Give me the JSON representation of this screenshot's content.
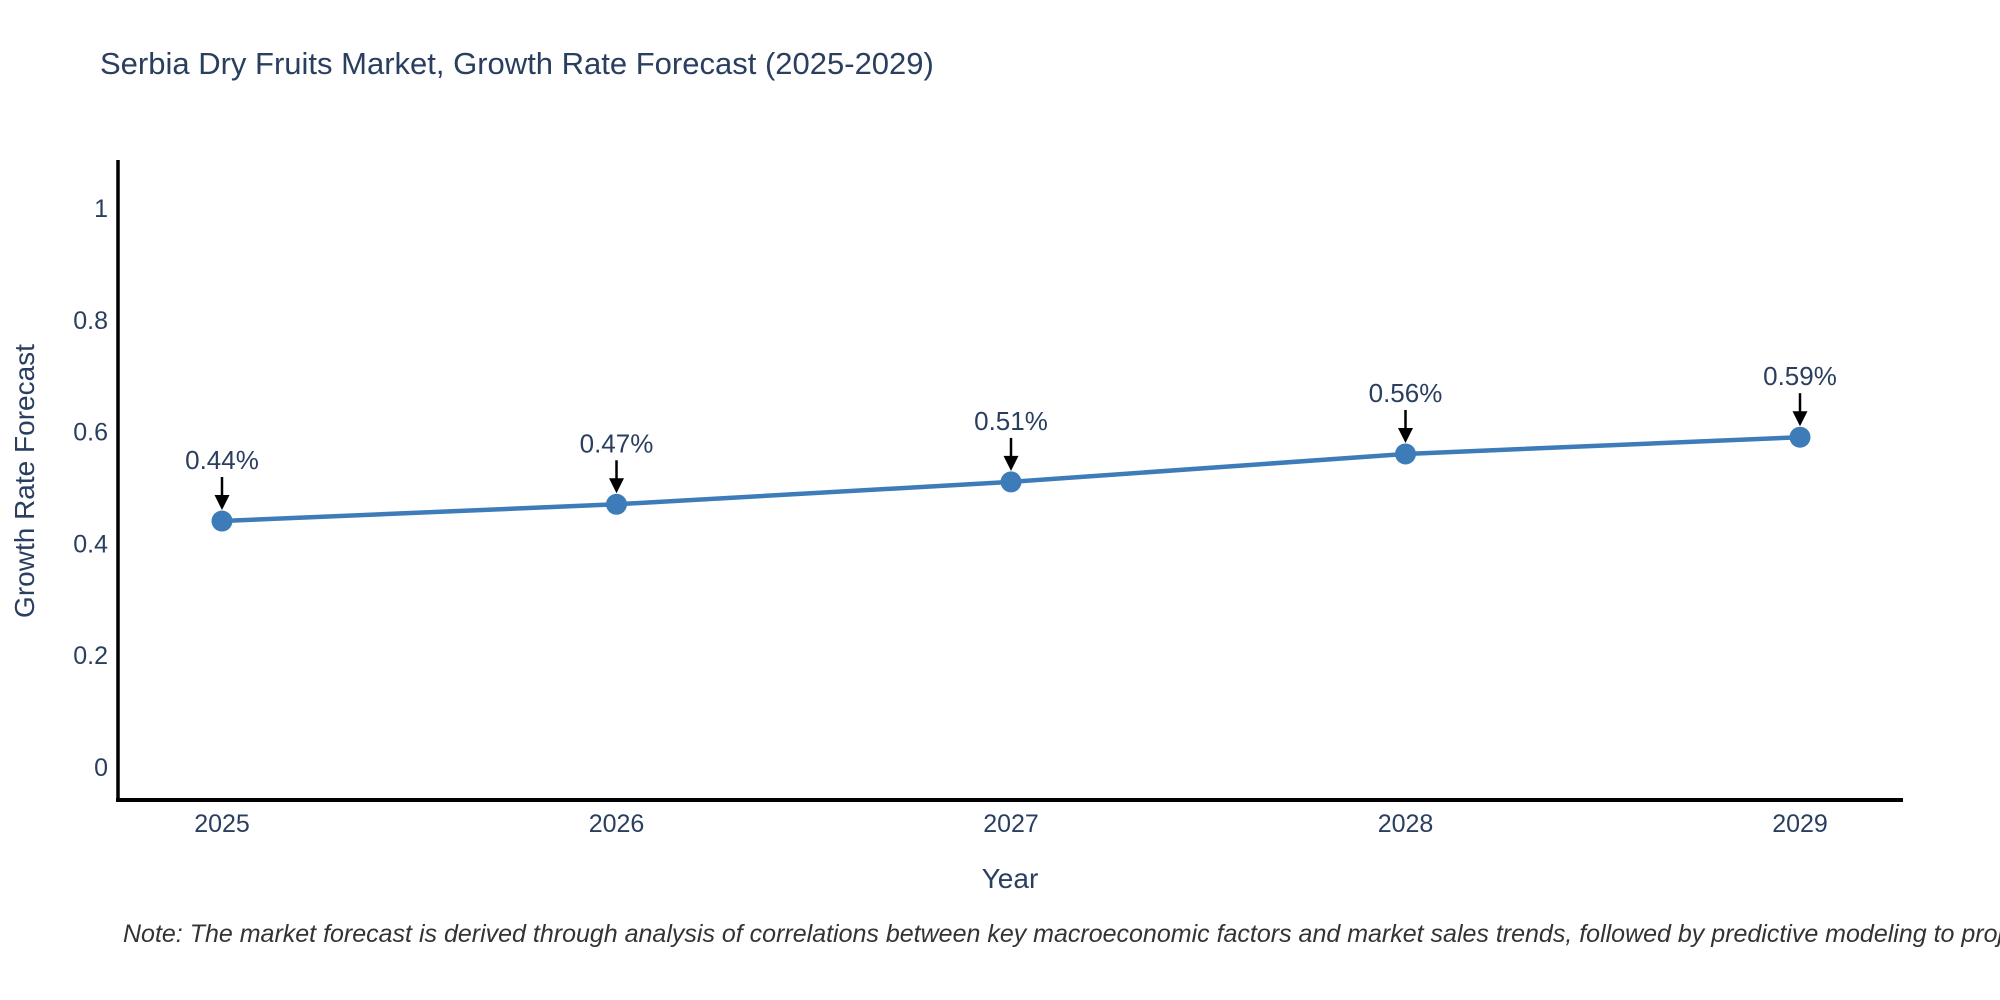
{
  "page": {
    "background_color": "#ffffff"
  },
  "chart_data": {
    "type": "line",
    "title": "Serbia Dry Fruits Market, Growth Rate Forecast (2025-2029)",
    "xlabel": "Year",
    "ylabel": "Growth Rate Forecast",
    "x": [
      2025,
      2026,
      2027,
      2028,
      2029
    ],
    "y": [
      0.44,
      0.47,
      0.51,
      0.56,
      0.59
    ],
    "point_labels": [
      "0.44%",
      "0.47%",
      "0.51%",
      "0.56%",
      "0.59%"
    ],
    "x_ticks": [
      "2025",
      "2026",
      "2027",
      "2028",
      "2029"
    ],
    "y_ticks": [
      0,
      0.2,
      0.4,
      0.6,
      0.8,
      1
    ],
    "xlim": [
      2024.74,
      2029.26
    ],
    "ylim": [
      -0.063,
      1.086
    ],
    "grid": false,
    "legend": "none",
    "line_color": "#3d7cb8",
    "marker_color": "#3d7cb8",
    "axis_color": "#000000",
    "text_color": "#2a3f5f",
    "annotation_arrow_color": "#000000"
  },
  "note": {
    "text": "Note: The market forecast is derived through analysis of correlations between key macroeconomic factors and market sales trends, followed by predictive modeling to project future sales"
  }
}
